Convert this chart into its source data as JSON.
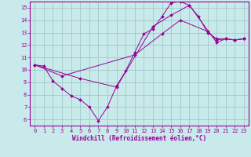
{
  "xlabel": "Windchill (Refroidissement éolien,°C)",
  "bg_color": "#c8eaea",
  "grid_color": "#a0c8c8",
  "line_color": "#990099",
  "xlim": [
    -0.5,
    23.5
  ],
  "ylim": [
    5.5,
    15.5
  ],
  "xticks": [
    0,
    1,
    2,
    3,
    4,
    5,
    6,
    7,
    8,
    9,
    10,
    11,
    12,
    13,
    14,
    15,
    16,
    17,
    18,
    19,
    20,
    21,
    22,
    23
  ],
  "yticks": [
    6,
    7,
    8,
    9,
    10,
    11,
    12,
    13,
    14,
    15
  ],
  "line1_x": [
    0,
    1,
    2,
    3,
    4,
    5,
    6,
    7,
    8,
    9,
    10,
    11,
    12,
    13,
    14,
    15,
    16,
    17,
    18,
    19,
    20,
    21,
    22,
    23
  ],
  "line1_y": [
    10.4,
    10.3,
    9.1,
    8.5,
    7.9,
    7.6,
    7.0,
    5.9,
    7.0,
    8.7,
    9.9,
    11.4,
    12.9,
    13.3,
    14.3,
    15.4,
    15.5,
    15.2,
    14.3,
    13.0,
    12.5,
    12.5,
    12.4,
    12.5
  ],
  "line2_x": [
    0,
    3,
    11,
    14,
    16,
    19,
    20,
    21,
    22,
    23
  ],
  "line2_y": [
    10.4,
    9.5,
    11.2,
    12.9,
    14.0,
    13.1,
    12.4,
    12.5,
    12.4,
    12.5
  ],
  "line3_x": [
    0,
    5,
    9,
    13,
    15,
    17,
    20,
    21,
    22,
    23
  ],
  "line3_y": [
    10.4,
    9.3,
    8.6,
    13.5,
    14.4,
    15.2,
    12.2,
    12.5,
    12.4,
    12.5
  ]
}
